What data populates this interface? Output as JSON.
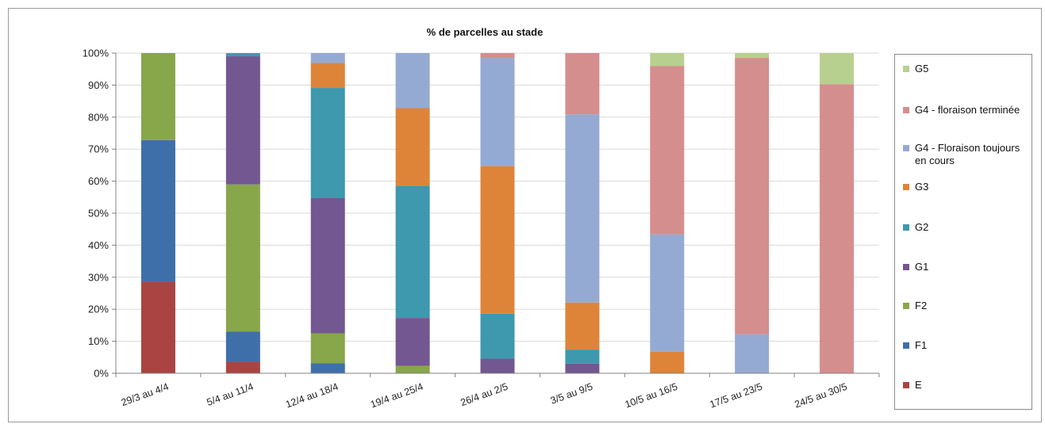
{
  "chart_data": {
    "type": "bar",
    "stacked": true,
    "title": "% de parcelles au stade",
    "categories": [
      "29/3 au 4/4",
      "5/4 au 11/4",
      "12/4 au 18/4",
      "19/4 au 25/4",
      "26/4 au 2/5",
      "3/5 au 9/5",
      "10/5 au 16/5",
      "17/5 au 23/5",
      "24/5 au 30/5"
    ],
    "y_ticks": [
      "0%",
      "10%",
      "20%",
      "30%",
      "40%",
      "50%",
      "60%",
      "70%",
      "80%",
      "90%",
      "100%"
    ],
    "ylim": [
      0,
      100
    ],
    "grid": true,
    "legend_position": "right",
    "series": [
      {
        "name": "E",
        "color": "#a94442",
        "values": [
          28.6,
          3.6,
          0,
          0,
          0,
          0,
          0,
          0,
          0
        ]
      },
      {
        "name": "F1",
        "color": "#3f6fa9",
        "values": [
          44.2,
          9.4,
          3.1,
          0,
          0,
          0,
          0,
          0,
          0
        ]
      },
      {
        "name": "F2",
        "color": "#88a64a",
        "values": [
          27.2,
          46,
          9.4,
          2.3,
          0,
          0,
          0,
          0,
          0
        ]
      },
      {
        "name": "G1",
        "color": "#735790",
        "values": [
          0,
          40,
          42.2,
          15,
          4.6,
          3,
          0,
          0,
          0
        ]
      },
      {
        "name": "G2",
        "color": "#3e98ae",
        "values": [
          0,
          1,
          34.4,
          41.3,
          14,
          4.4,
          0,
          0,
          0
        ]
      },
      {
        "name": "G3",
        "color": "#de8439",
        "values": [
          0,
          0,
          7.8,
          24.2,
          46.1,
          14.7,
          6.7,
          0,
          0
        ]
      },
      {
        "name": "G4 - Floraison toujours en cours",
        "color": "#95aad2",
        "values": [
          0,
          0,
          3.1,
          17.2,
          33.8,
          58.8,
          36.7,
          12.2,
          0
        ]
      },
      {
        "name": "G4 - floraison terminée",
        "color": "#d48e8d",
        "values": [
          0,
          0,
          0,
          0,
          1.5,
          19.1,
          52.6,
          86.3,
          90.3
        ]
      },
      {
        "name": "G5",
        "color": "#b8d08f",
        "values": [
          0,
          0,
          0,
          0,
          0,
          0,
          4,
          1.5,
          9.7
        ]
      }
    ]
  }
}
